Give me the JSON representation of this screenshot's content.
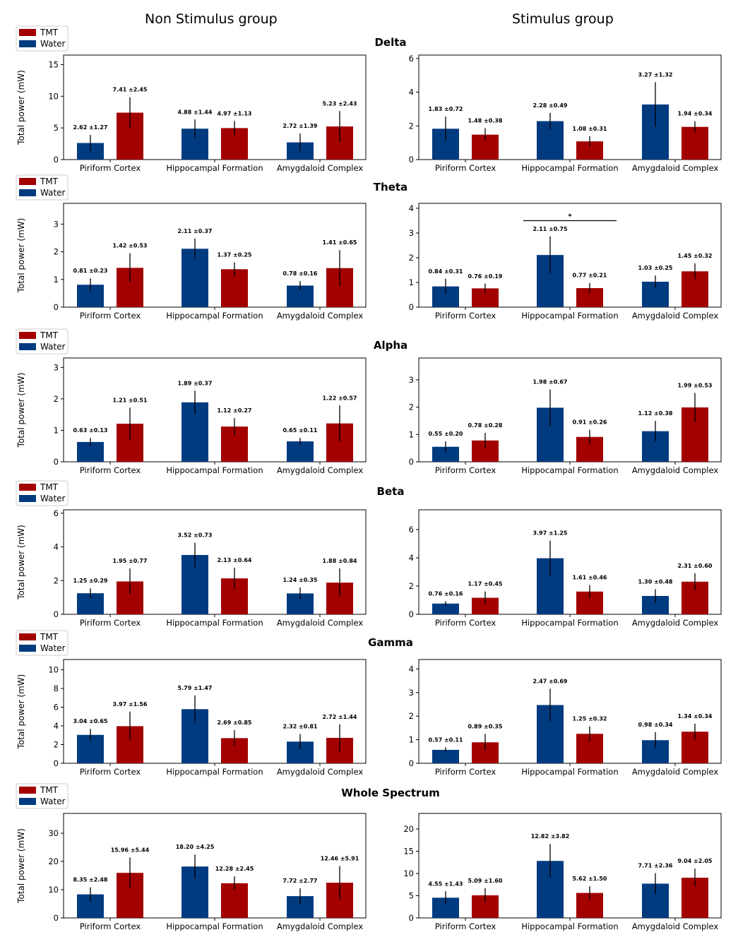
{
  "columns": {
    "left": "Non Stimulus group",
    "right": "Stimulus group"
  },
  "legend": {
    "tmt": "TMT",
    "water": "Water"
  },
  "colors": {
    "water": "#003b80",
    "tmt": "#a30000"
  },
  "chart_data": [
    {
      "type": "bar",
      "band": "Delta",
      "group": "Non Stimulus group",
      "title": "Delta",
      "ylabel": "Total power (mW)",
      "categories": [
        "Piriform Cortex",
        "Hippocampal Formation",
        "Amygdaloid Complex"
      ],
      "ylim": [
        0,
        16.5
      ],
      "yticks": [
        0,
        5,
        10,
        15
      ],
      "series": [
        {
          "name": "Water",
          "values": [
            2.62,
            4.88,
            2.72
          ],
          "errors": [
            1.27,
            1.44,
            1.39
          ],
          "labels": [
            "2.62 ±1.27",
            "4.88 ±1.44",
            "2.72 ±1.39"
          ]
        },
        {
          "name": "TMT",
          "values": [
            7.41,
            4.97,
            5.23
          ],
          "errors": [
            2.45,
            1.13,
            2.43
          ],
          "labels": [
            "7.41 ±2.45",
            "4.97 ±1.13",
            "5.23 ±2.43"
          ]
        }
      ]
    },
    {
      "type": "bar",
      "band": "Delta",
      "group": "Stimulus group",
      "categories": [
        "Piriform Cortex",
        "Hippocampal Formation",
        "Amygdaloid Complex"
      ],
      "ylim": [
        0,
        6.2
      ],
      "yticks": [
        0,
        2,
        4,
        6
      ],
      "series": [
        {
          "name": "Water",
          "values": [
            1.83,
            2.28,
            3.27
          ],
          "errors": [
            0.72,
            0.49,
            1.32
          ],
          "labels": [
            "1.83 ±0.72",
            "2.28 ±0.49",
            "3.27 ±1.32"
          ]
        },
        {
          "name": "TMT",
          "values": [
            1.48,
            1.08,
            1.94
          ],
          "errors": [
            0.38,
            0.31,
            0.34
          ],
          "labels": [
            "1.48 ±0.38",
            "1.08 ±0.31",
            "1.94 ±0.34"
          ]
        }
      ]
    },
    {
      "type": "bar",
      "band": "Theta",
      "group": "Non Stimulus group",
      "title": "Theta",
      "ylabel": "Total power (mW)",
      "categories": [
        "Piriform Cortex",
        "Hippocampal Formation",
        "Amygdaloid Complex"
      ],
      "ylim": [
        0,
        3.75
      ],
      "yticks": [
        0,
        1,
        2,
        3
      ],
      "series": [
        {
          "name": "Water",
          "values": [
            0.81,
            2.11,
            0.78
          ],
          "errors": [
            0.23,
            0.37,
            0.16
          ],
          "labels": [
            "0.81 ±0.23",
            "2.11 ±0.37",
            "0.78 ±0.16"
          ]
        },
        {
          "name": "TMT",
          "values": [
            1.42,
            1.37,
            1.41
          ],
          "errors": [
            0.53,
            0.25,
            0.65
          ],
          "labels": [
            "1.42 ±0.53",
            "1.37 ±0.25",
            "1.41 ±0.65"
          ]
        }
      ]
    },
    {
      "type": "bar",
      "band": "Theta",
      "group": "Stimulus group",
      "categories": [
        "Piriform Cortex",
        "Hippocampal Formation",
        "Amygdaloid Complex"
      ],
      "ylim": [
        0,
        4.2
      ],
      "yticks": [
        0,
        1,
        2,
        3,
        4
      ],
      "significance": {
        "category": "Hippocampal Formation",
        "y": 3.5,
        "symbol": "*"
      },
      "series": [
        {
          "name": "Water",
          "values": [
            0.84,
            2.11,
            1.03
          ],
          "errors": [
            0.31,
            0.75,
            0.25
          ],
          "labels": [
            "0.84 ±0.31",
            "2.11 ±0.75",
            "1.03 ±0.25"
          ]
        },
        {
          "name": "TMT",
          "values": [
            0.76,
            0.77,
            1.45
          ],
          "errors": [
            0.19,
            0.21,
            0.32
          ],
          "labels": [
            "0.76 ±0.19",
            "0.77 ±0.21",
            "1.45 ±0.32"
          ]
        }
      ]
    },
    {
      "type": "bar",
      "band": "Alpha",
      "group": "Non Stimulus group",
      "title": "Alpha",
      "ylabel": "Total power (mW)",
      "categories": [
        "Piriform Cortex",
        "Hippocampal Formation",
        "Amygdaloid Complex"
      ],
      "ylim": [
        0,
        3.3
      ],
      "yticks": [
        0,
        1,
        2,
        3
      ],
      "series": [
        {
          "name": "Water",
          "values": [
            0.63,
            1.89,
            0.65
          ],
          "errors": [
            0.13,
            0.37,
            0.11
          ],
          "labels": [
            "0.63 ±0.13",
            "1.89 ±0.37",
            "0.65 ±0.11"
          ]
        },
        {
          "name": "TMT",
          "values": [
            1.21,
            1.12,
            1.22
          ],
          "errors": [
            0.51,
            0.27,
            0.57
          ],
          "labels": [
            "1.21 ±0.51",
            "1.12 ±0.27",
            "1.22 ±0.57"
          ]
        }
      ]
    },
    {
      "type": "bar",
      "band": "Alpha",
      "group": "Stimulus group",
      "categories": [
        "Piriform Cortex",
        "Hippocampal Formation",
        "Amygdaloid Complex"
      ],
      "ylim": [
        0,
        3.8
      ],
      "yticks": [
        0,
        1,
        2,
        3
      ],
      "series": [
        {
          "name": "Water",
          "values": [
            0.55,
            1.98,
            1.12
          ],
          "errors": [
            0.2,
            0.67,
            0.38
          ],
          "labels": [
            "0.55 ±0.20",
            "1.98 ±0.67",
            "1.12 ±0.38"
          ]
        },
        {
          "name": "TMT",
          "values": [
            0.78,
            0.91,
            1.99
          ],
          "errors": [
            0.28,
            0.26,
            0.53
          ],
          "labels": [
            "0.78 ±0.28",
            "0.91 ±0.26",
            "1.99 ±0.53"
          ]
        }
      ]
    },
    {
      "type": "bar",
      "band": "Beta",
      "group": "Non Stimulus group",
      "title": "Beta",
      "ylabel": "Total power (mW)",
      "categories": [
        "Piriform Cortex",
        "Hippocampal Formation",
        "Amygdaloid Complex"
      ],
      "ylim": [
        0,
        6.2
      ],
      "yticks": [
        0,
        2,
        4,
        6
      ],
      "series": [
        {
          "name": "Water",
          "values": [
            1.25,
            3.52,
            1.24
          ],
          "errors": [
            0.29,
            0.73,
            0.35
          ],
          "labels": [
            "1.25 ±0.29",
            "3.52 ±0.73",
            "1.24 ±0.35"
          ]
        },
        {
          "name": "TMT",
          "values": [
            1.95,
            2.13,
            1.88
          ],
          "errors": [
            0.77,
            0.64,
            0.84
          ],
          "labels": [
            "1.95 ±0.77",
            "2.13 ±0.64",
            "1.88 ±0.84"
          ]
        }
      ]
    },
    {
      "type": "bar",
      "band": "Beta",
      "group": "Stimulus group",
      "categories": [
        "Piriform Cortex",
        "Hippocampal Formation",
        "Amygdaloid Complex"
      ],
      "ylim": [
        0,
        7.4
      ],
      "yticks": [
        0,
        2,
        4,
        6
      ],
      "series": [
        {
          "name": "Water",
          "values": [
            0.76,
            3.97,
            1.3
          ],
          "errors": [
            0.16,
            1.25,
            0.48
          ],
          "labels": [
            "0.76 ±0.16",
            "3.97 ±1.25",
            "1.30 ±0.48"
          ]
        },
        {
          "name": "TMT",
          "values": [
            1.17,
            1.61,
            2.31
          ],
          "errors": [
            0.45,
            0.46,
            0.6
          ],
          "labels": [
            "1.17 ±0.45",
            "1.61 ±0.46",
            "2.31 ±0.60"
          ]
        }
      ]
    },
    {
      "type": "bar",
      "band": "Gamma",
      "group": "Non Stimulus group",
      "title": "Gamma",
      "ylabel": "Total power (mW)",
      "categories": [
        "Piriform Cortex",
        "Hippocampal Formation",
        "Amygdaloid Complex"
      ],
      "ylim": [
        0,
        11.1
      ],
      "yticks": [
        0,
        2,
        4,
        6,
        8,
        10
      ],
      "series": [
        {
          "name": "Water",
          "values": [
            3.04,
            5.79,
            2.32
          ],
          "errors": [
            0.65,
            1.47,
            0.81
          ],
          "labels": [
            "3.04 ±0.65",
            "5.79 ±1.47",
            "2.32 ±0.81"
          ]
        },
        {
          "name": "TMT",
          "values": [
            3.97,
            2.69,
            2.72
          ],
          "errors": [
            1.56,
            0.85,
            1.44
          ],
          "labels": [
            "3.97 ±1.56",
            "2.69 ±0.85",
            "2.72 ±1.44"
          ]
        }
      ]
    },
    {
      "type": "bar",
      "band": "Gamma",
      "group": "Stimulus group",
      "categories": [
        "Piriform Cortex",
        "Hippocampal Formation",
        "Amygdaloid Complex"
      ],
      "ylim": [
        0,
        4.4
      ],
      "yticks": [
        0,
        1,
        2,
        3,
        4
      ],
      "series": [
        {
          "name": "Water",
          "values": [
            0.57,
            2.47,
            0.98
          ],
          "errors": [
            0.11,
            0.69,
            0.34
          ],
          "labels": [
            "0.57 ±0.11",
            "2.47 ±0.69",
            "0.98 ±0.34"
          ]
        },
        {
          "name": "TMT",
          "values": [
            0.89,
            1.25,
            1.34
          ],
          "errors": [
            0.35,
            0.32,
            0.34
          ],
          "labels": [
            "0.89 ±0.35",
            "1.25 ±0.32",
            "1.34 ±0.34"
          ]
        }
      ]
    },
    {
      "type": "bar",
      "band": "Whole Spectrum",
      "group": "Non Stimulus group",
      "title": "Whole Spectrum",
      "ylabel": "Total power (mW)",
      "categories": [
        "Piriform Cortex",
        "Hippocampal Formation",
        "Amygdaloid Complex"
      ],
      "ylim": [
        0,
        37
      ],
      "yticks": [
        0,
        10,
        20,
        30
      ],
      "series": [
        {
          "name": "Water",
          "values": [
            8.35,
            18.2,
            7.72
          ],
          "errors": [
            2.48,
            4.25,
            2.77
          ],
          "labels": [
            "8.35 ±2.48",
            "18.20 ±4.25",
            "7.72 ±2.77"
          ]
        },
        {
          "name": "TMT",
          "values": [
            15.96,
            12.28,
            12.46
          ],
          "errors": [
            5.44,
            2.45,
            5.91
          ],
          "labels": [
            "15.96 ±5.44",
            "12.28 ±2.45",
            "12.46 ±5.91"
          ]
        }
      ]
    },
    {
      "type": "bar",
      "band": "Whole Spectrum",
      "group": "Stimulus group",
      "categories": [
        "Piriform Cortex",
        "Hippocampal Formation",
        "Amygdaloid Complex"
      ],
      "ylim": [
        0,
        23.5
      ],
      "yticks": [
        0,
        5,
        10,
        15,
        20
      ],
      "series": [
        {
          "name": "Water",
          "values": [
            4.55,
            12.82,
            7.71
          ],
          "errors": [
            1.43,
            3.82,
            2.36
          ],
          "labels": [
            "4.55 ±1.43",
            "12.82 ±3.82",
            "7.71 ±2.36"
          ]
        },
        {
          "name": "TMT",
          "values": [
            5.09,
            5.62,
            9.04
          ],
          "errors": [
            1.6,
            1.5,
            2.05
          ],
          "labels": [
            "5.09 ±1.60",
            "5.62 ±1.50",
            "9.04 ±2.05"
          ]
        }
      ]
    }
  ]
}
